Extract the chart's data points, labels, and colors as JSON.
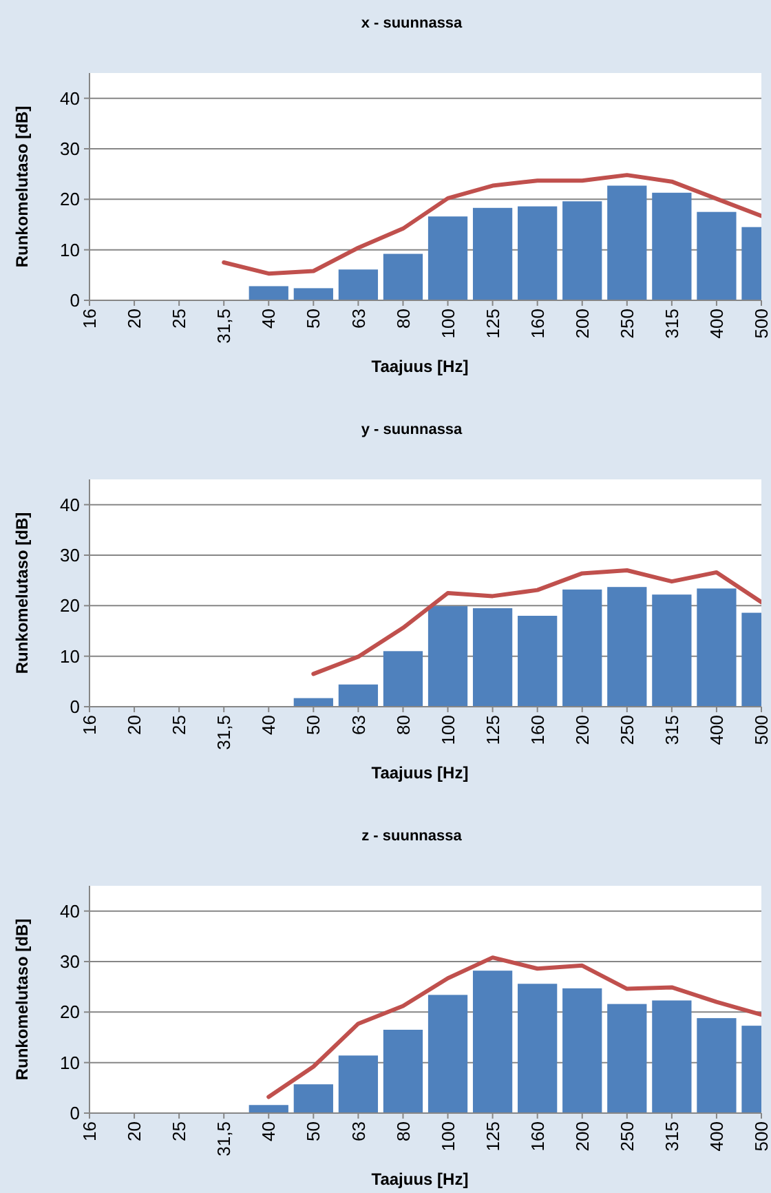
{
  "chart_data": [
    {
      "type": "bar",
      "title": "x - suunnassa",
      "xlabel": "Taajuus [Hz]",
      "ylabel": "Runkomelutaso [dB]",
      "categories": [
        "16",
        "20",
        "25",
        "31,5",
        "40",
        "50",
        "63",
        "80",
        "100",
        "125",
        "160",
        "200",
        "250",
        "315",
        "400",
        "500"
      ],
      "ylim": [
        0,
        45
      ],
      "yticks": [
        0,
        10,
        20,
        30,
        40
      ],
      "grid": "y",
      "series": [
        {
          "type": "bar",
          "color": "#4f81bd",
          "values": [
            null,
            null,
            null,
            null,
            2.8,
            2.4,
            6.1,
            9.2,
            16.6,
            18.3,
            18.6,
            19.6,
            22.7,
            21.3,
            17.5,
            14.5
          ]
        },
        {
          "type": "line",
          "color": "#c0504d",
          "values": [
            null,
            null,
            null,
            7.5,
            5.3,
            5.8,
            10.4,
            14.2,
            20.2,
            22.7,
            23.7,
            23.7,
            24.8,
            23.5,
            20.1,
            16.7
          ]
        }
      ]
    },
    {
      "type": "bar",
      "title": "y - suunnassa",
      "xlabel": "Taajuus [Hz]",
      "ylabel": "Runkomelutaso [dB]",
      "categories": [
        "16",
        "20",
        "25",
        "31,5",
        "40",
        "50",
        "63",
        "80",
        "100",
        "125",
        "160",
        "200",
        "250",
        "315",
        "400",
        "500"
      ],
      "ylim": [
        0,
        45
      ],
      "yticks": [
        0,
        10,
        20,
        30,
        40
      ],
      "grid": "y",
      "series": [
        {
          "type": "bar",
          "color": "#4f81bd",
          "values": [
            0,
            0,
            0,
            0,
            0,
            1.7,
            4.4,
            11.0,
            19.9,
            19.5,
            18.0,
            23.2,
            23.7,
            22.2,
            23.4,
            18.6
          ]
        },
        {
          "type": "line",
          "color": "#c0504d",
          "values": [
            null,
            null,
            null,
            null,
            null,
            6.5,
            9.9,
            15.6,
            22.5,
            21.9,
            23.1,
            26.4,
            27.0,
            24.8,
            26.6,
            20.7
          ]
        }
      ]
    },
    {
      "type": "bar",
      "title": "z - suunnassa",
      "xlabel": "Taajuus [Hz]",
      "ylabel": "Runkomelutaso [dB]",
      "categories": [
        "16",
        "20",
        "25",
        "31,5",
        "40",
        "50",
        "63",
        "80",
        "100",
        "125",
        "160",
        "200",
        "250",
        "315",
        "400",
        "500"
      ],
      "ylim": [
        0,
        45
      ],
      "yticks": [
        0,
        10,
        20,
        30,
        40
      ],
      "grid": "y",
      "series": [
        {
          "type": "bar",
          "color": "#4f81bd",
          "values": [
            null,
            null,
            null,
            null,
            1.6,
            5.7,
            11.4,
            16.5,
            23.4,
            28.2,
            25.6,
            24.7,
            21.6,
            22.3,
            18.8,
            17.3
          ]
        },
        {
          "type": "line",
          "color": "#c0504d",
          "values": [
            null,
            null,
            null,
            null,
            3.2,
            9.2,
            17.7,
            21.2,
            26.7,
            30.8,
            28.6,
            29.2,
            24.6,
            24.9,
            22.0,
            19.5
          ]
        }
      ]
    }
  ]
}
